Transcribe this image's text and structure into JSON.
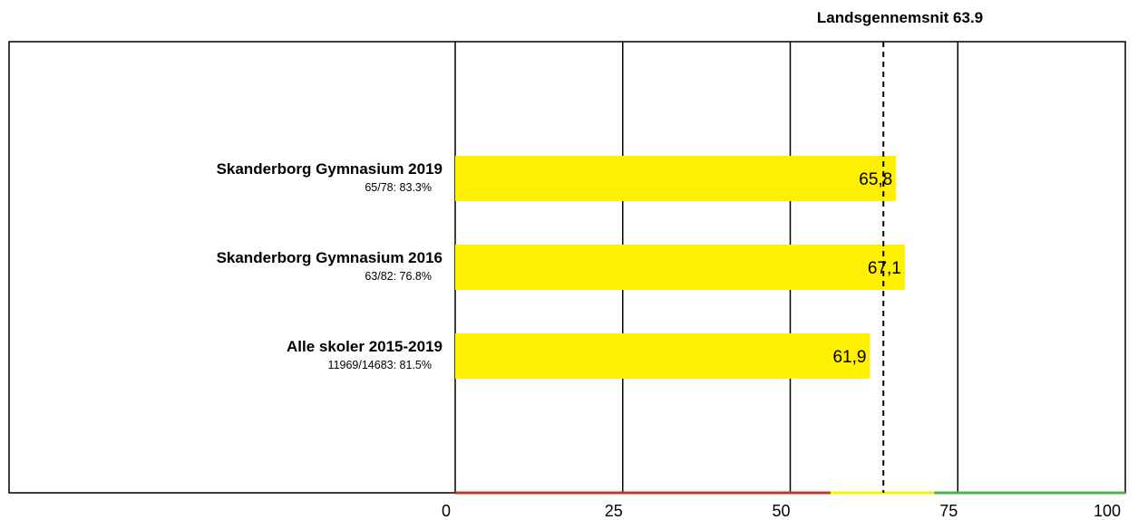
{
  "reference": {
    "label": "Landsgennemsnit 63.9",
    "value": 63.9
  },
  "chart_data": {
    "type": "bar",
    "orientation": "horizontal",
    "categories": [
      "Skanderborg Gymnasium 2019",
      "Skanderborg Gymnasium 2016",
      "Alle skoler 2015-2019"
    ],
    "sublabels": [
      "65/78: 83.3%",
      "63/82: 76.8%",
      "11969/14683: 81.5%"
    ],
    "values": [
      65.8,
      67.1,
      61.9
    ],
    "value_labels": [
      "65,8",
      "67,1",
      "61,9"
    ],
    "bar_color": "#ffef00",
    "xlim": [
      0,
      100
    ],
    "xticks": [
      0,
      25,
      50,
      75,
      100
    ],
    "xtick_labels": [
      "0",
      "25",
      "50",
      "75",
      "100"
    ],
    "grid": true,
    "reference_line": {
      "value": 63.9,
      "style": "dashed"
    },
    "axis_color_bands": [
      {
        "from": 0,
        "to": 56,
        "color": "#c0392b"
      },
      {
        "from": 56,
        "to": 71.5,
        "color": "#ffef00"
      },
      {
        "from": 71.5,
        "to": 100,
        "color": "#4caf50"
      }
    ]
  }
}
